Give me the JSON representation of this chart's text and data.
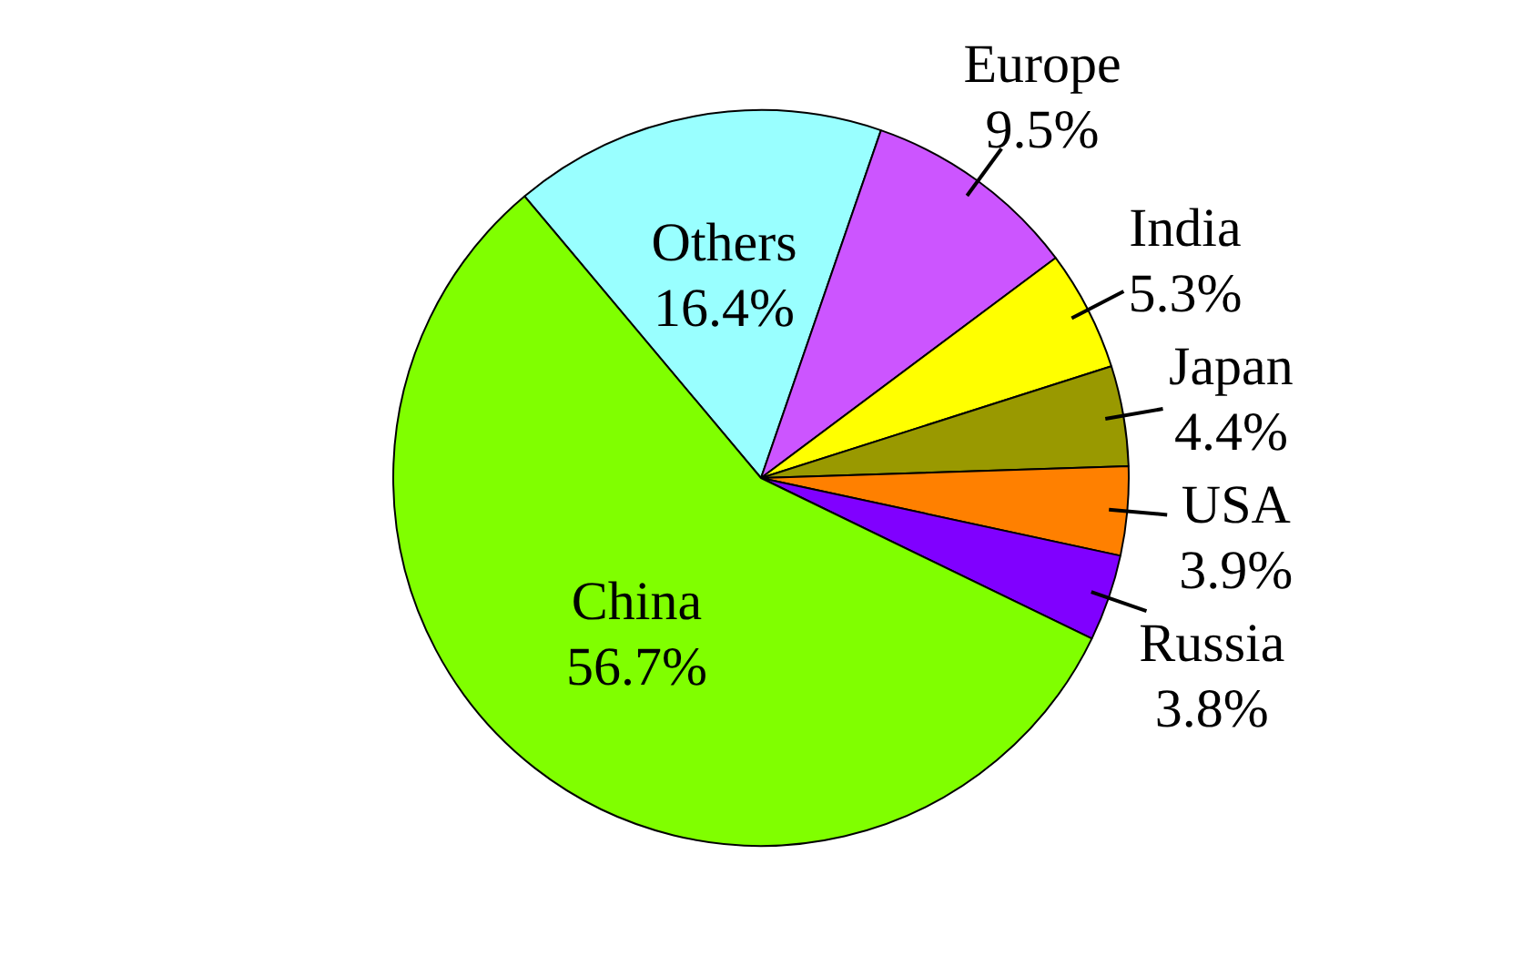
{
  "chart_data": {
    "type": "pie",
    "categories": [
      "Others",
      "Europe",
      "India",
      "Japan",
      "USA",
      "Russia",
      "China"
    ],
    "values": [
      16.4,
      9.5,
      5.3,
      4.4,
      3.9,
      3.8,
      56.7
    ],
    "colors": [
      "#99ffff",
      "#cc55ff",
      "#ffff00",
      "#999900",
      "#ff8000",
      "#8000ff",
      "#80ff00"
    ],
    "value_labels": [
      "16.4%",
      "9.5%",
      "5.3%",
      "4.4%",
      "3.9%",
      "3.8%",
      "56.7%"
    ],
    "legend": false
  }
}
